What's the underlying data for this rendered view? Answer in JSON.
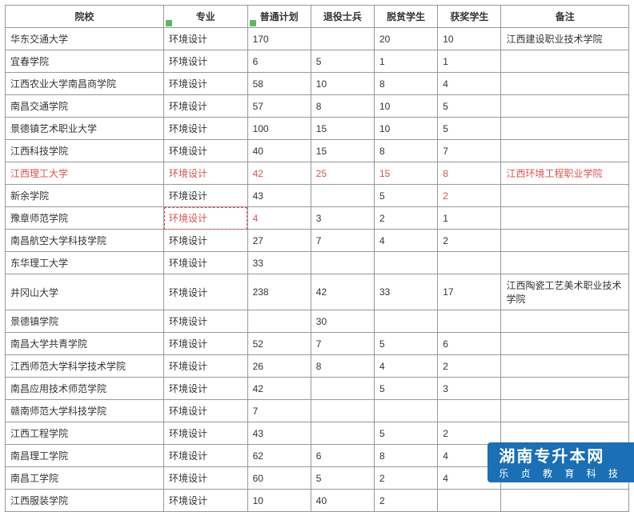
{
  "table": {
    "columns": [
      "院校",
      "专业",
      "普通计划",
      "退役士兵",
      "脱贫学生",
      "获奖学生",
      "备注"
    ],
    "column_widths": [
      "180px",
      "95px",
      "72px",
      "72px",
      "72px",
      "72px",
      "145px"
    ],
    "header_bg": "#ffffff",
    "border_color": "#999999",
    "text_color": "#333333",
    "highlight_color": "#d9534f",
    "filter_mark_color": "#5cb85c",
    "font_size": 12,
    "rows": [
      {
        "cells": [
          "华东交通大学",
          "环境设计",
          "170",
          "",
          "20",
          "10",
          "江西建设职业技术学院"
        ],
        "highlight": false
      },
      {
        "cells": [
          "宜春学院",
          "环境设计",
          "6",
          "5",
          "1",
          "1",
          ""
        ],
        "highlight": false
      },
      {
        "cells": [
          "江西农业大学南昌商学院",
          "环境设计",
          "58",
          "10",
          "8",
          "4",
          ""
        ],
        "highlight": false
      },
      {
        "cells": [
          "南昌交通学院",
          "环境设计",
          "57",
          "8",
          "10",
          "5",
          ""
        ],
        "highlight": false
      },
      {
        "cells": [
          "景德镇艺术职业大学",
          "环境设计",
          "100",
          "15",
          "10",
          "5",
          ""
        ],
        "highlight": false
      },
      {
        "cells": [
          "江西科技学院",
          "环境设计",
          "40",
          "15",
          "8",
          "7",
          ""
        ],
        "highlight": false
      },
      {
        "cells": [
          "江西理工大学",
          "环境设计",
          "42",
          "25",
          "15",
          "8",
          "江西环境工程职业学院"
        ],
        "highlight": true
      },
      {
        "cells": [
          "新余学院",
          "环境设计",
          "43",
          "",
          "5",
          "2",
          ""
        ],
        "highlight": false,
        "highlight_cells": [
          5
        ]
      },
      {
        "cells": [
          "豫章师范学院",
          "环境设计",
          "4",
          "3",
          "2",
          "1",
          ""
        ],
        "highlight": false,
        "highlight_cells": [
          1,
          2
        ],
        "dash_cells": [
          1
        ]
      },
      {
        "cells": [
          "南昌航空大学科技学院",
          "环境设计",
          "27",
          "7",
          "4",
          "2",
          ""
        ],
        "highlight": false
      },
      {
        "cells": [
          "东华理工大学",
          "环境设计",
          "33",
          "",
          "",
          "",
          ""
        ],
        "highlight": false
      },
      {
        "cells": [
          "井冈山大学",
          "环境设计",
          "238",
          "42",
          "33",
          "17",
          "江西陶瓷工艺美术职业技术学院"
        ],
        "highlight": false
      },
      {
        "cells": [
          "景德镇学院",
          "环境设计",
          "",
          "30",
          "",
          "",
          ""
        ],
        "highlight": false
      },
      {
        "cells": [
          "南昌大学共青学院",
          "环境设计",
          "52",
          "7",
          "5",
          "6",
          ""
        ],
        "highlight": false
      },
      {
        "cells": [
          "江西师范大学科学技术学院",
          "环境设计",
          "26",
          "8",
          "4",
          "2",
          ""
        ],
        "highlight": false
      },
      {
        "cells": [
          "南昌应用技术师范学院",
          "环境设计",
          "42",
          "",
          "5",
          "3",
          ""
        ],
        "highlight": false
      },
      {
        "cells": [
          "赣南师范大学科技学院",
          "环境设计",
          "7",
          "",
          "",
          "",
          ""
        ],
        "highlight": false
      },
      {
        "cells": [
          "江西工程学院",
          "环境设计",
          "43",
          "",
          "5",
          "2",
          ""
        ],
        "highlight": false
      },
      {
        "cells": [
          "南昌理工学院",
          "环境设计",
          "62",
          "6",
          "8",
          "4",
          ""
        ],
        "highlight": false
      },
      {
        "cells": [
          "南昌工学院",
          "环境设计",
          "60",
          "5",
          "2",
          "4",
          ""
        ],
        "highlight": false
      },
      {
        "cells": [
          "江西服装学院",
          "环境设计",
          "10",
          "40",
          "2",
          "",
          ""
        ],
        "highlight": false
      }
    ]
  },
  "watermark": {
    "title": "湖南专升本网",
    "subtitle": "乐 贞 教 育 科 技",
    "bg_color": "#1a6fb5",
    "text_color": "#ffffff"
  }
}
